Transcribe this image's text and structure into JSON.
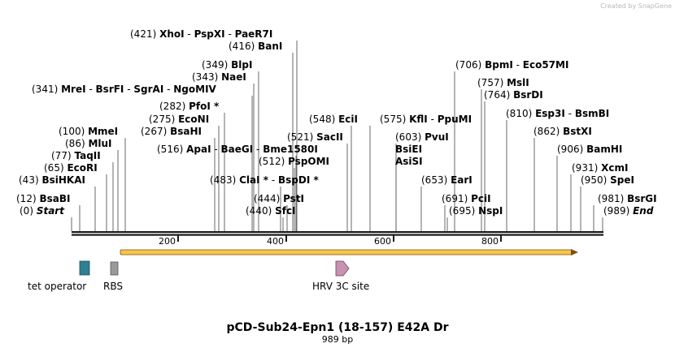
{
  "credit": "Created by SnapGene",
  "title": "pCD-Sub24-Epn1 (18-157) E42A Dr",
  "length_label": "989 bp",
  "sequence_length": 989,
  "ticks": [
    "200",
    "400",
    "600",
    "800"
  ],
  "colors": {
    "backbone": "#1a1a1a",
    "orf_fill": "#f7c64a",
    "orf_stroke": "#7a4f0a",
    "tet_operator": "#2f7f95",
    "rbs": "#9a9a9a",
    "hrv_3c": "#c792b0"
  },
  "features": [
    {
      "name": "tet operator",
      "icon": "box-feature-icon",
      "color": "#2f7f95"
    },
    {
      "name": "RBS",
      "icon": "box-feature-icon",
      "color": "#9a9a9a"
    },
    {
      "name": "HRV 3C site",
      "icon": "arrow-feature-icon",
      "color": "#c792b0"
    }
  ],
  "sites": [
    {
      "pos": "(421)",
      "names": [
        "XhoI",
        "PspXI",
        "PaeR7I"
      ]
    },
    {
      "pos": "(416)",
      "names": [
        "BanI"
      ]
    },
    {
      "pos": "(349)",
      "names": [
        "BlpI"
      ]
    },
    {
      "pos": "(343)",
      "names": [
        "NaeI"
      ]
    },
    {
      "pos": "(341)",
      "names": [
        "MreI",
        "BsrFI",
        "SgrAI",
        "NgoMIV"
      ]
    },
    {
      "pos": "(282)",
      "names": [
        "PfoI *"
      ]
    },
    {
      "pos": "(275)",
      "names": [
        "EcoNI"
      ]
    },
    {
      "pos": "(267)",
      "names": [
        "BsaHI"
      ]
    },
    {
      "pos": "(100)",
      "names": [
        "MmeI"
      ]
    },
    {
      "pos": "(86)",
      "names": [
        "MluI"
      ]
    },
    {
      "pos": "(77)",
      "names": [
        "TaqII"
      ]
    },
    {
      "pos": "(65)",
      "names": [
        "EcoRI"
      ]
    },
    {
      "pos": "(43)",
      "names": [
        "BsiHKAI"
      ]
    },
    {
      "pos": "(12)",
      "names": [
        "BsaBI"
      ]
    },
    {
      "pos": "(0)",
      "names": [
        "Start"
      ]
    },
    {
      "pos": "(516)",
      "names": [
        "ApaI",
        "BaeGI",
        "Bme1580I"
      ]
    },
    {
      "pos": "(512)",
      "names": [
        "PspOMI"
      ]
    },
    {
      "pos": "(483)",
      "names": [
        "ClaI *",
        "BspDI *"
      ]
    },
    {
      "pos": "(444)",
      "names": [
        "PstI"
      ]
    },
    {
      "pos": "(440)",
      "names": [
        "SfcI"
      ]
    },
    {
      "pos": "(548)",
      "names": [
        "EciI"
      ]
    },
    {
      "pos": "(521)",
      "names": [
        "SacII"
      ]
    },
    {
      "pos": "(575)",
      "names": [
        "KflI",
        "PpuMI"
      ]
    },
    {
      "pos": "(603)",
      "names": [
        "PvuI"
      ]
    },
    {
      "pos": "",
      "names": [
        "BsiEI"
      ]
    },
    {
      "pos": "",
      "names": [
        "AsiSI"
      ]
    },
    {
      "pos": "(653)",
      "names": [
        "EarI"
      ]
    },
    {
      "pos": "(691)",
      "names": [
        "PciI"
      ]
    },
    {
      "pos": "(695)",
      "names": [
        "NspI"
      ]
    },
    {
      "pos": "(706)",
      "names": [
        "BpmI",
        "Eco57MI"
      ]
    },
    {
      "pos": "(757)",
      "names": [
        "MslI"
      ]
    },
    {
      "pos": "(764)",
      "names": [
        "BsrDI"
      ]
    },
    {
      "pos": "(810)",
      "names": [
        "Esp3I",
        "BsmBI"
      ]
    },
    {
      "pos": "(862)",
      "names": [
        "BstXI"
      ]
    },
    {
      "pos": "(906)",
      "names": [
        "BamHI"
      ]
    },
    {
      "pos": "(931)",
      "names": [
        "XcmI"
      ]
    },
    {
      "pos": "(950)",
      "names": [
        "SpeI"
      ]
    },
    {
      "pos": "(981)",
      "names": [
        "BsrGI"
      ]
    },
    {
      "pos": "(989)",
      "names": [
        "End"
      ]
    }
  ]
}
